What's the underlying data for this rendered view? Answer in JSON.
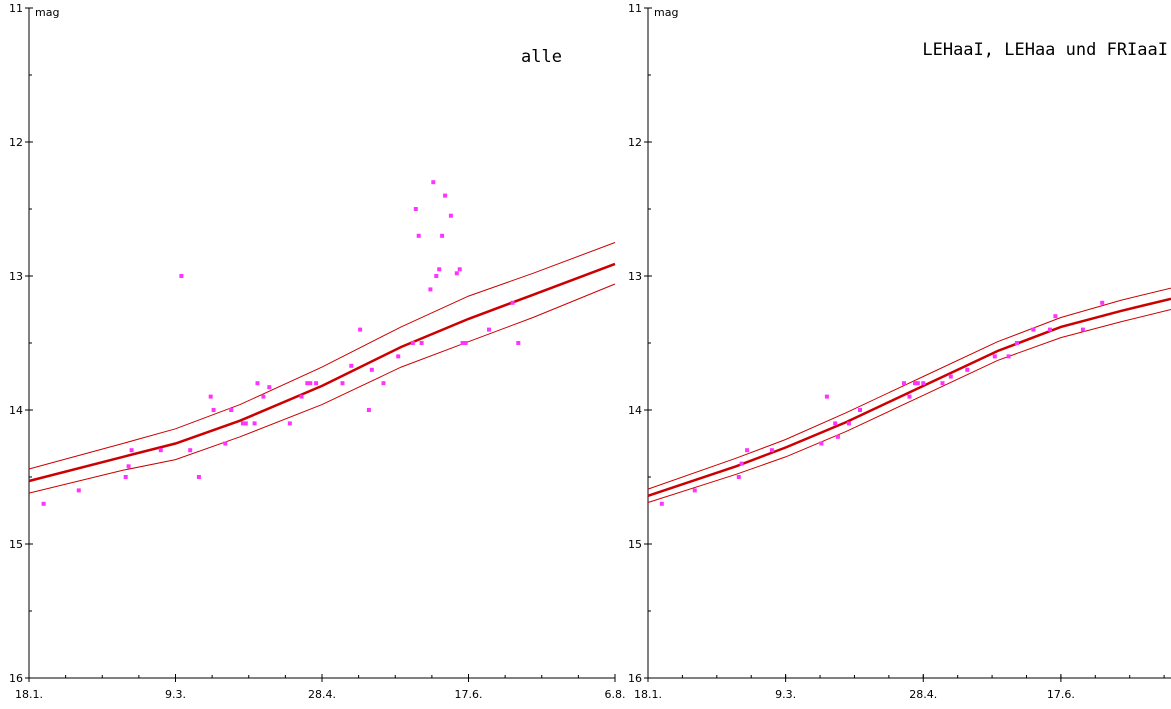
{
  "chart_data": [
    {
      "type": "scatter",
      "title": "alle",
      "ylabel": "mag",
      "ylim": [
        16,
        11
      ],
      "y_reversed": true,
      "y_ticks": [
        11,
        12,
        13,
        14,
        15,
        16
      ],
      "x_tick_labels": [
        "18.1.",
        "9.3.",
        "28.4.",
        "17.6.",
        "6.8."
      ],
      "xlim": [
        18,
        218
      ],
      "x_tick_values": [
        18,
        68,
        118,
        168,
        218
      ],
      "grid": false,
      "fit": {
        "color": "#cc0000",
        "band_color": "#cc0000",
        "center": [
          [
            18,
            14.53
          ],
          [
            50,
            14.35
          ],
          [
            68,
            14.25
          ],
          [
            90,
            14.08
          ],
          [
            118,
            13.82
          ],
          [
            145,
            13.53
          ],
          [
            168,
            13.32
          ],
          [
            190,
            13.14
          ],
          [
            218,
            12.91
          ]
        ],
        "upper": [
          [
            18,
            14.44
          ],
          [
            50,
            14.25
          ],
          [
            68,
            14.14
          ],
          [
            90,
            13.96
          ],
          [
            118,
            13.68
          ],
          [
            145,
            13.38
          ],
          [
            168,
            13.15
          ],
          [
            190,
            12.98
          ],
          [
            218,
            12.75
          ]
        ],
        "lower": [
          [
            18,
            14.62
          ],
          [
            50,
            14.45
          ],
          [
            68,
            14.37
          ],
          [
            90,
            14.2
          ],
          [
            118,
            13.96
          ],
          [
            145,
            13.68
          ],
          [
            168,
            13.49
          ],
          [
            190,
            13.31
          ],
          [
            218,
            13.06
          ]
        ]
      },
      "points_color": "#ff33ff",
      "points": [
        [
          23,
          14.7
        ],
        [
          35,
          14.6
        ],
        [
          51,
          14.5
        ],
        [
          52,
          14.42
        ],
        [
          53,
          14.3
        ],
        [
          63,
          14.3
        ],
        [
          70,
          13.0
        ],
        [
          73,
          14.3
        ],
        [
          76,
          14.5
        ],
        [
          80,
          13.9
        ],
        [
          81,
          14.0
        ],
        [
          85,
          14.25
        ],
        [
          87,
          14.0
        ],
        [
          91,
          14.1
        ],
        [
          92,
          14.1
        ],
        [
          95,
          14.1
        ],
        [
          96,
          13.8
        ],
        [
          98,
          13.9
        ],
        [
          100,
          13.83
        ],
        [
          107,
          14.1
        ],
        [
          111,
          13.9
        ],
        [
          113,
          13.8
        ],
        [
          114,
          13.8
        ],
        [
          116,
          13.8
        ],
        [
          125,
          13.8
        ],
        [
          128,
          13.67
        ],
        [
          131,
          13.4
        ],
        [
          134,
          14.0
        ],
        [
          135,
          13.7
        ],
        [
          139,
          13.8
        ],
        [
          144,
          13.6
        ],
        [
          149,
          13.5
        ],
        [
          150,
          12.5
        ],
        [
          151,
          12.7
        ],
        [
          152,
          13.5
        ],
        [
          155,
          13.1
        ],
        [
          156,
          12.3
        ],
        [
          157,
          13.0
        ],
        [
          158,
          12.95
        ],
        [
          159,
          12.7
        ],
        [
          160,
          12.4
        ],
        [
          162,
          12.55
        ],
        [
          164,
          12.98
        ],
        [
          165,
          12.95
        ],
        [
          166,
          13.5
        ],
        [
          167,
          13.5
        ],
        [
          175,
          13.4
        ],
        [
          183,
          13.2
        ],
        [
          185,
          13.5
        ]
      ]
    },
    {
      "type": "scatter",
      "title": "LEHaaI, LEHaa und FRIaaI",
      "ylabel": "mag",
      "ylim": [
        16,
        11
      ],
      "y_reversed": true,
      "y_ticks": [
        11,
        12,
        13,
        14,
        15,
        16
      ],
      "x_tick_labels": [
        "18.1.",
        "9.3.",
        "28.4.",
        "17.6."
      ],
      "xlim": [
        18,
        208
      ],
      "x_tick_values": [
        18,
        68,
        118,
        168
      ],
      "grid": false,
      "fit": {
        "color": "#cc0000",
        "band_color": "#cc0000",
        "center": [
          [
            18,
            14.64
          ],
          [
            50,
            14.42
          ],
          [
            68,
            14.28
          ],
          [
            90,
            14.09
          ],
          [
            118,
            13.82
          ],
          [
            145,
            13.56
          ],
          [
            168,
            13.38
          ],
          [
            190,
            13.26
          ],
          [
            208,
            13.17
          ]
        ],
        "upper": [
          [
            18,
            14.59
          ],
          [
            50,
            14.36
          ],
          [
            68,
            14.22
          ],
          [
            90,
            14.02
          ],
          [
            118,
            13.75
          ],
          [
            145,
            13.49
          ],
          [
            168,
            13.31
          ],
          [
            190,
            13.18
          ],
          [
            208,
            13.09
          ]
        ],
        "lower": [
          [
            18,
            14.69
          ],
          [
            50,
            14.48
          ],
          [
            68,
            14.35
          ],
          [
            90,
            14.16
          ],
          [
            118,
            13.89
          ],
          [
            145,
            13.63
          ],
          [
            168,
            13.46
          ],
          [
            190,
            13.34
          ],
          [
            208,
            13.25
          ]
        ]
      },
      "points_color": "#ff33ff",
      "points": [
        [
          23,
          14.7
        ],
        [
          35,
          14.6
        ],
        [
          51,
          14.5
        ],
        [
          52,
          14.4
        ],
        [
          54,
          14.3
        ],
        [
          63,
          14.3
        ],
        [
          81,
          14.25
        ],
        [
          83,
          13.9
        ],
        [
          86,
          14.1
        ],
        [
          87,
          14.2
        ],
        [
          91,
          14.1
        ],
        [
          95,
          14.0
        ],
        [
          111,
          13.8
        ],
        [
          113,
          13.9
        ],
        [
          115,
          13.8
        ],
        [
          116,
          13.8
        ],
        [
          118,
          13.8
        ],
        [
          125,
          13.8
        ],
        [
          128,
          13.75
        ],
        [
          134,
          13.7
        ],
        [
          144,
          13.6
        ],
        [
          149,
          13.6
        ],
        [
          152,
          13.5
        ],
        [
          158,
          13.4
        ],
        [
          164,
          13.4
        ],
        [
          166,
          13.3
        ],
        [
          176,
          13.4
        ],
        [
          183,
          13.2
        ]
      ]
    }
  ]
}
